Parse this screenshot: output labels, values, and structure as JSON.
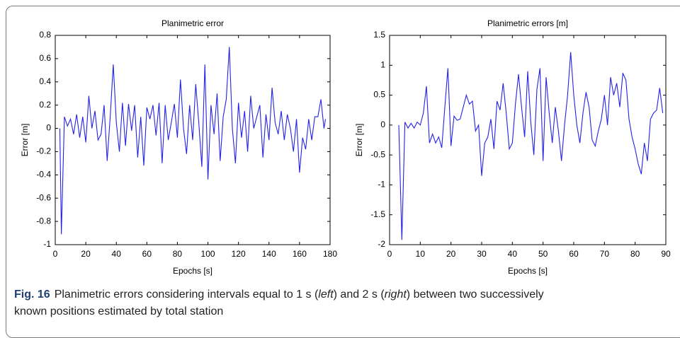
{
  "chart_data": [
    {
      "type": "line",
      "title": "Planimetric error",
      "x_label": "Epochs [s]",
      "y_label": "Error [m]",
      "color": "#2323e6",
      "xlim": [
        0,
        180
      ],
      "xticks": [
        0,
        20,
        40,
        60,
        80,
        100,
        120,
        140,
        160,
        180
      ],
      "ylim": [
        -1,
        0.8
      ],
      "yticks": [
        -1,
        -0.8,
        -0.6,
        -0.4,
        -0.2,
        0,
        0.2,
        0.4,
        0.6,
        0.8
      ],
      "x": [
        3,
        4,
        6,
        8,
        10,
        12,
        14,
        16,
        18,
        20,
        22,
        24,
        26,
        28,
        30,
        32,
        34,
        36,
        38,
        40,
        42,
        44,
        46,
        48,
        50,
        52,
        54,
        56,
        58,
        60,
        62,
        64,
        66,
        68,
        70,
        72,
        74,
        76,
        78,
        80,
        82,
        84,
        86,
        88,
        90,
        92,
        94,
        96,
        98,
        100,
        102,
        104,
        106,
        108,
        110,
        112,
        114,
        116,
        118,
        120,
        122,
        124,
        126,
        128,
        130,
        132,
        134,
        136,
        138,
        140,
        142,
        144,
        146,
        148,
        150,
        152,
        154,
        156,
        158,
        160,
        162,
        164,
        166,
        168,
        170,
        172,
        174,
        176,
        177
      ],
      "values": [
        0.0,
        -0.91,
        0.1,
        0.02,
        0.08,
        -0.05,
        0.12,
        -0.08,
        0.1,
        -0.12,
        0.28,
        0.0,
        0.15,
        -0.1,
        -0.05,
        0.2,
        -0.28,
        0.1,
        0.55,
        0.05,
        -0.2,
        0.22,
        -0.15,
        0.21,
        -0.02,
        0.2,
        -0.25,
        0.1,
        -0.32,
        0.18,
        0.08,
        0.2,
        -0.06,
        0.22,
        -0.3,
        0.2,
        -0.1,
        0.05,
        0.21,
        -0.08,
        0.42,
        0.0,
        -0.22,
        0.2,
        -0.1,
        0.38,
        0.05,
        -0.33,
        0.55,
        -0.44,
        0.2,
        -0.05,
        0.3,
        -0.28,
        0.1,
        0.25,
        0.7,
        0.0,
        -0.3,
        0.22,
        -0.08,
        0.15,
        -0.2,
        0.28,
        0.0,
        0.1,
        0.2,
        -0.25,
        0.12,
        -0.1,
        0.35,
        0.05,
        -0.05,
        0.15,
        -0.1,
        0.12,
        0.0,
        -0.2,
        0.08,
        -0.38,
        -0.08,
        -0.18,
        0.08,
        -0.1,
        0.1,
        0.1,
        0.25,
        0.0,
        0.08
      ]
    },
    {
      "type": "line",
      "title": "Planimetric errors [m]",
      "x_label": "Epochs [s]",
      "y_label": "Error [m]",
      "color": "#2323e6",
      "xlim": [
        0,
        90
      ],
      "xticks": [
        0,
        10,
        20,
        30,
        40,
        50,
        60,
        70,
        80,
        90
      ],
      "ylim": [
        -2,
        1.5
      ],
      "yticks": [
        -2,
        -1.5,
        -1,
        -0.5,
        0,
        0.5,
        1,
        1.5
      ],
      "x": [
        3,
        4,
        5,
        6,
        7,
        8,
        9,
        10,
        11,
        12,
        13,
        14,
        15,
        16,
        17,
        18,
        19,
        20,
        21,
        22,
        23,
        24,
        25,
        26,
        27,
        28,
        29,
        30,
        31,
        32,
        33,
        34,
        35,
        36,
        37,
        38,
        39,
        40,
        41,
        42,
        43,
        44,
        45,
        46,
        47,
        48,
        49,
        50,
        51,
        52,
        53,
        54,
        55,
        56,
        57,
        58,
        59,
        60,
        61,
        62,
        63,
        64,
        65,
        66,
        67,
        68,
        69,
        70,
        71,
        72,
        73,
        74,
        75,
        76,
        77,
        78,
        79,
        80,
        81,
        82,
        83,
        84,
        85,
        86,
        87,
        88,
        89
      ],
      "values": [
        0,
        -1.92,
        0.05,
        -0.05,
        0.03,
        -0.05,
        0.05,
        0.0,
        0.2,
        0.65,
        -0.3,
        -0.15,
        -0.3,
        -0.2,
        -0.38,
        0.3,
        0.95,
        -0.35,
        0.15,
        0.08,
        0.1,
        0.3,
        0.5,
        0.35,
        0.4,
        -0.1,
        0.0,
        -0.85,
        -0.3,
        -0.2,
        0.1,
        -0.4,
        0.4,
        0.25,
        0.7,
        0.2,
        -0.4,
        -0.3,
        0.35,
        0.85,
        0.3,
        -0.2,
        0.9,
        0.05,
        -0.5,
        0.6,
        0.95,
        -0.6,
        0.8,
        0.2,
        -0.3,
        0.3,
        -0.1,
        -0.6,
        0.0,
        0.5,
        1.22,
        0.5,
        0.0,
        -0.3,
        0.2,
        0.55,
        0.3,
        -0.25,
        -0.35,
        -0.1,
        0.1,
        0.5,
        0.0,
        0.8,
        0.5,
        0.7,
        0.3,
        0.87,
        0.75,
        0.1,
        -0.2,
        -0.4,
        -0.65,
        -0.82,
        -0.3,
        -0.6,
        0.1,
        0.2,
        0.25,
        0.62,
        0.2
      ]
    }
  ],
  "caption": {
    "label": "Fig. 16",
    "parts": [
      "Planimetric errors considering intervals equal to 1 s (",
      "left",
      ") and 2 s (",
      "right",
      ") between two successively known positions estimated by total station"
    ]
  }
}
